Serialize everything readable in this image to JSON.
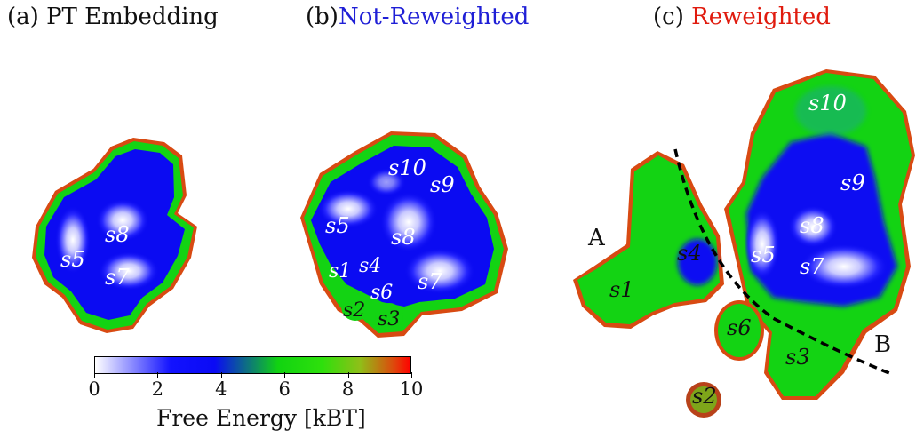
{
  "panels": {
    "a": {
      "tag": "(a)",
      "word": "PT Embedding"
    },
    "b": {
      "tag": "(b)",
      "word": "Not-Reweighted"
    },
    "c": {
      "tag": "(c)",
      "word": "Reweighted"
    }
  },
  "states": {
    "a": [
      "s8",
      "s5",
      "s7"
    ],
    "b": [
      "s10",
      "s9",
      "s5",
      "s8",
      "s1",
      "s4",
      "s6",
      "s7",
      "s2",
      "s3"
    ],
    "c": [
      "s10",
      "s9",
      "s8",
      "s5",
      "s7",
      "s4",
      "s1",
      "s6",
      "s3",
      "s2"
    ]
  },
  "regions": {
    "left": "A",
    "right": "B"
  },
  "colorbar": {
    "ticks": [
      "0",
      "2",
      "4",
      "6",
      "8",
      "10"
    ],
    "range": [
      0,
      10
    ],
    "label": "Free Energy [kBT]",
    "colors": [
      "#ffffff",
      "#1212ff",
      "#11d311",
      "#8fbf18",
      "#ff0000"
    ]
  },
  "colors": {
    "not_reweighted": "#1f1fd6",
    "reweighted": "#e01b0e"
  }
}
